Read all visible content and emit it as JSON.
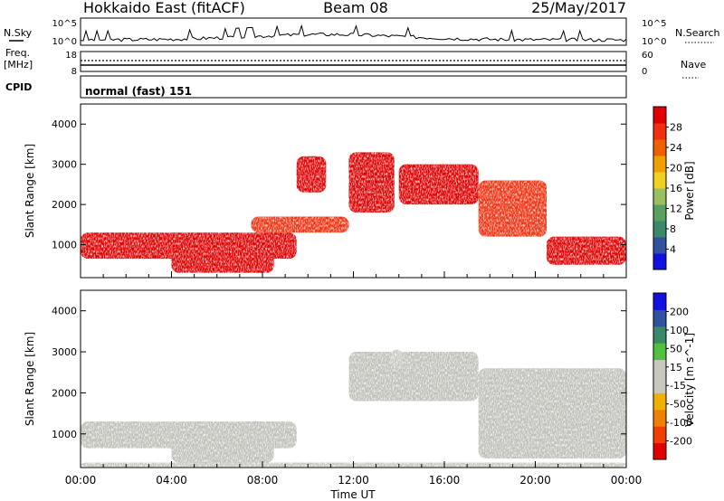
{
  "header": {
    "station": "Hokkaido East (fitACF)",
    "beam": "Beam 08",
    "date": "25/May/2017"
  },
  "top_panels": {
    "nsky_label": "N.Sky",
    "nsky_ticks": [
      "10^5",
      "10^0"
    ],
    "nsearch_label": "N.Search",
    "freq_label_1": "Freq.",
    "freq_label_2": "[MHz]",
    "freq_ticks": [
      "18",
      "8"
    ],
    "nave_ticks": [
      "60",
      "0"
    ],
    "nave_label": "Nave",
    "cpid_label": "CPID",
    "cpid_value": "normal (fast) 151"
  },
  "colors": {
    "power_scale": [
      "#1010e0",
      "#3050a0",
      "#3a8a6a",
      "#58a060",
      "#98c060",
      "#f0d020",
      "#f0a000",
      "#f06000",
      "#f03010",
      "#e00000"
    ],
    "velocity_scale": [
      "#e00000",
      "#f04000",
      "#f08000",
      "#f0b000",
      "#c8c8c0",
      "#c8c8c0",
      "#50c040",
      "#3a8a6a",
      "#3050a0",
      "#1010e0"
    ],
    "ground_scatter": "#c0c0b8"
  },
  "chart_data": [
    {
      "type": "heatmap",
      "title": "",
      "xlabel": "",
      "ylabel": "Slant Range [km]",
      "y_ticks": [
        "1000",
        "2000",
        "3000",
        "4000"
      ],
      "ylim": [
        180,
        4500
      ],
      "xlim": [
        "00:00",
        "24:00"
      ],
      "colorbar": {
        "label": "Power [dB]",
        "ticks": [
          "4",
          "8",
          "12",
          "16",
          "20",
          "24",
          "28"
        ],
        "range": [
          0,
          30
        ]
      },
      "echo_regions_hours_km": [
        {
          "x": [
            0,
            9.5
          ],
          "y": [
            650,
            1300
          ],
          "value": 27
        },
        {
          "x": [
            4,
            8.5
          ],
          "y": [
            300,
            900
          ],
          "value": 28
        },
        {
          "x": [
            7.5,
            11.8
          ],
          "y": [
            1300,
            1700
          ],
          "value": 26
        },
        {
          "x": [
            9.5,
            10.8
          ],
          "y": [
            2300,
            3200
          ],
          "value": 27
        },
        {
          "x": [
            11.8,
            13.8
          ],
          "y": [
            1800,
            3300
          ],
          "value": 28
        },
        {
          "x": [
            14,
            17.5
          ],
          "y": [
            2000,
            3000
          ],
          "value": 28
        },
        {
          "x": [
            17.5,
            20.5
          ],
          "y": [
            1200,
            2600
          ],
          "value": 26
        },
        {
          "x": [
            20.5,
            24
          ],
          "y": [
            500,
            1200
          ],
          "value": 27
        }
      ]
    },
    {
      "type": "heatmap",
      "title": "",
      "xlabel": "Time UT",
      "ylabel": "Slant Range [km]",
      "x_ticks": [
        "00:00",
        "04:00",
        "08:00",
        "12:00",
        "16:00",
        "20:00",
        "00:00"
      ],
      "y_ticks": [
        "1000",
        "2000",
        "3000",
        "4000"
      ],
      "ylim": [
        180,
        4500
      ],
      "xlim": [
        "00:00",
        "24:00"
      ],
      "colorbar": {
        "label": "Velocity [m s^-1]",
        "ticks": [
          "-200",
          "-100",
          "-50",
          "-15",
          "15",
          "50",
          "100",
          "200"
        ],
        "range": [
          -250,
          250
        ]
      },
      "echo_regions_hours_km": [
        {
          "x": [
            0,
            9.5
          ],
          "y": [
            650,
            1300
          ],
          "value": 0
        },
        {
          "x": [
            4,
            8.5
          ],
          "y": [
            300,
            900
          ],
          "value": 0
        },
        {
          "x": [
            11.8,
            17.5
          ],
          "y": [
            1800,
            3000
          ],
          "value": 0
        },
        {
          "x": [
            13.6,
            14.2
          ],
          "y": [
            2600,
            3050
          ],
          "value": 40
        },
        {
          "x": [
            17.5,
            18.5
          ],
          "y": [
            500,
            700
          ],
          "value": -30
        },
        {
          "x": [
            17.5,
            24
          ],
          "y": [
            400,
            2600
          ],
          "value": 0
        },
        {
          "x": [
            0,
            24
          ],
          "y": [
            200,
            300
          ],
          "value": 40
        }
      ]
    }
  ]
}
